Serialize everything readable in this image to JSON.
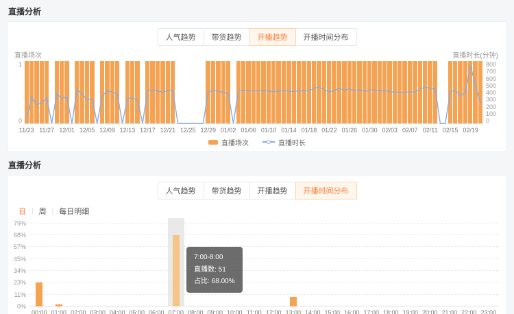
{
  "panel1": {
    "title": "直播分析",
    "tabs": [
      {
        "label": "人气趋势",
        "active": false
      },
      {
        "label": "带货趋势",
        "active": false
      },
      {
        "label": "开播趋势",
        "active": true
      },
      {
        "label": "开播时间分布",
        "active": false
      }
    ]
  },
  "panel2": {
    "title": "直播分析",
    "tabs": [
      {
        "label": "人气趋势",
        "active": false
      },
      {
        "label": "带货趋势",
        "active": false
      },
      {
        "label": "开播趋势",
        "active": false
      },
      {
        "label": "开播时间分布",
        "active": true
      }
    ],
    "view_toggle": {
      "options": [
        "日",
        "周"
      ],
      "selected": "日",
      "detail_label": "每日明细",
      "separator": "|"
    }
  },
  "colors": {
    "accent_orange": "#ff7e35",
    "bar_orange": "#f5a353",
    "bar_highlight": "#f7c488",
    "line_blue": "#87abe0",
    "tooltip_bg": "rgba(66,66,66,0.78)",
    "highlight_band": "#e3e3e3"
  },
  "chart_data": [
    {
      "type": "bar+line",
      "title": "开播趋势",
      "left_axis": {
        "label": "直播场次",
        "range": [
          0,
          1
        ],
        "tick_labels": [
          "1",
          "0"
        ]
      },
      "right_axis": {
        "label": "直播时长(分钟)",
        "range": [
          0,
          800
        ],
        "tick_labels": [
          "800",
          "700",
          "600",
          "500",
          "400",
          "300",
          "200",
          "100",
          "0"
        ]
      },
      "x_tick_labels": [
        "11/23",
        "11/27",
        "12/01",
        "12/05",
        "12/09",
        "12/13",
        "12/17",
        "12/21",
        "12/25",
        "12/29",
        "01/02",
        "01/06",
        "01/10",
        "01/14",
        "01/18",
        "01/22",
        "01/26",
        "01/30",
        "02/03",
        "02/07",
        "02/11",
        "02/15",
        "02/19"
      ],
      "x": [
        "11/23",
        "11/24",
        "11/25",
        "11/26",
        "11/27",
        "11/28",
        "11/29",
        "11/30",
        "12/01",
        "12/02",
        "12/03",
        "12/04",
        "12/05",
        "12/06",
        "12/07",
        "12/08",
        "12/09",
        "12/10",
        "12/11",
        "12/12",
        "12/13",
        "12/14",
        "12/15",
        "12/16",
        "12/17",
        "12/18",
        "12/19",
        "12/20",
        "12/21",
        "12/22",
        "12/23",
        "12/24",
        "12/25",
        "12/26",
        "12/27",
        "12/28",
        "12/29",
        "12/30",
        "12/31",
        "01/01",
        "01/02",
        "01/03",
        "01/04",
        "01/05",
        "01/06",
        "01/07",
        "01/08",
        "01/09",
        "01/10",
        "01/11",
        "01/12",
        "01/13",
        "01/14",
        "01/15",
        "01/16",
        "01/17",
        "01/18",
        "01/19",
        "01/20",
        "01/21",
        "01/22",
        "01/23",
        "01/24",
        "01/25",
        "01/26",
        "01/27",
        "01/28",
        "01/29",
        "01/30",
        "01/31",
        "02/01",
        "02/02",
        "02/03",
        "02/04",
        "02/05",
        "02/06",
        "02/07",
        "02/08",
        "02/09",
        "02/10",
        "02/11",
        "02/12",
        "02/13",
        "02/14",
        "02/15",
        "02/16",
        "02/17",
        "02/18",
        "02/19",
        "02/20",
        "02/21"
      ],
      "series": [
        {
          "name": "直播场次",
          "type": "bar",
          "yaxis": "left",
          "values": [
            1,
            1,
            1,
            1,
            1,
            0,
            1,
            1,
            1,
            0,
            1,
            1,
            1,
            1,
            0,
            1,
            1,
            1,
            1,
            0,
            1,
            1,
            1,
            0,
            1,
            1,
            1,
            1,
            1,
            1,
            0,
            0,
            0,
            0,
            0,
            0,
            1,
            1,
            1,
            1,
            1,
            0,
            1,
            1,
            1,
            1,
            1,
            1,
            1,
            1,
            1,
            1,
            1,
            1,
            1,
            1,
            1,
            1,
            1,
            1,
            1,
            1,
            1,
            1,
            1,
            1,
            1,
            1,
            1,
            1,
            1,
            1,
            1,
            1,
            1,
            1,
            1,
            1,
            1,
            1,
            1,
            1,
            0,
            0,
            1,
            1,
            1,
            1,
            1,
            1,
            1
          ]
        },
        {
          "name": "直播时长",
          "type": "line",
          "yaxis": "right",
          "values": [
            60,
            340,
            240,
            260,
            330,
            0,
            380,
            320,
            340,
            0,
            430,
            380,
            300,
            320,
            0,
            350,
            420,
            400,
            380,
            0,
            320,
            330,
            300,
            0,
            420,
            430,
            415,
            400,
            420,
            420,
            0,
            0,
            0,
            0,
            0,
            0,
            400,
            420,
            415,
            400,
            380,
            0,
            420,
            425,
            420,
            415,
            420,
            420,
            415,
            410,
            415,
            420,
            415,
            410,
            418,
            415,
            420,
            445,
            470,
            430,
            405,
            420,
            450,
            425,
            445,
            420,
            435,
            410,
            425,
            430,
            415,
            420,
            410,
            400,
            395,
            400,
            405,
            400,
            440,
            465,
            450,
            440,
            0,
            0,
            410,
            425,
            350,
            400,
            740,
            480,
            260
          ]
        }
      ]
    },
    {
      "type": "bar",
      "title": "开播时间分布",
      "categories": [
        "00:00",
        "01:00",
        "02:00",
        "03:00",
        "04:00",
        "05:00",
        "06:00",
        "07:00",
        "08:00",
        "09:00",
        "10:00",
        "11:00",
        "12:00",
        "13:00",
        "14:00",
        "15:00",
        "16:00",
        "17:00",
        "18:00",
        "19:00",
        "20:00",
        "21:00",
        "22:00",
        "23:00"
      ],
      "values": [
        23,
        2,
        0,
        0,
        0,
        0,
        0,
        68,
        0,
        0,
        0,
        0,
        0,
        9,
        0,
        0,
        0,
        0,
        0,
        0,
        0,
        0,
        0,
        0
      ],
      "ylabel": "占比",
      "yticks": [
        0,
        11,
        23,
        34,
        45,
        57,
        68,
        79
      ],
      "ytick_suffix": "%",
      "ylim": [
        0,
        79
      ],
      "grid": "dashed",
      "highlight_index": 7,
      "tooltip": {
        "title": "7:00-8:00",
        "rows": [
          "直播数: 51",
          "占比: 68.00%"
        ]
      }
    }
  ]
}
